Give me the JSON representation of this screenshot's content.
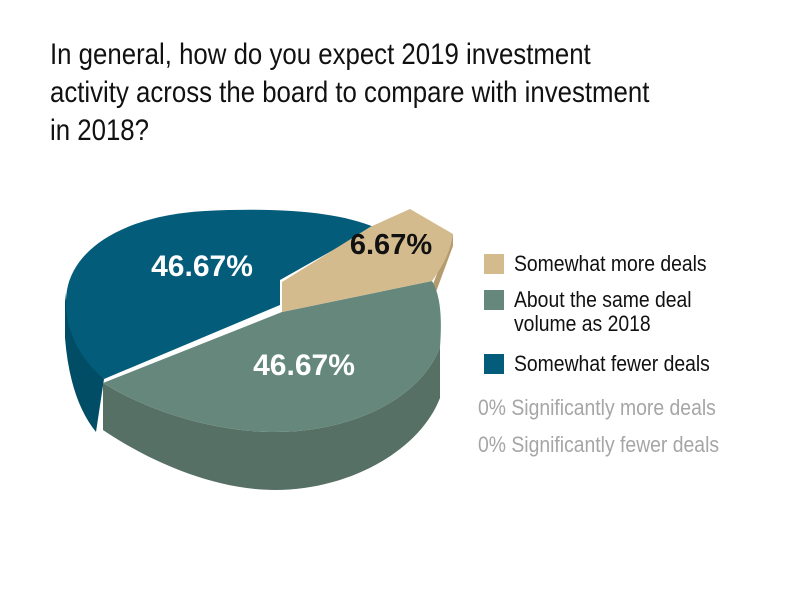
{
  "title": "In general, how do you expect 2019 investment\nactivity across the board to compare with investment\nin 2018?",
  "chart_data": {
    "type": "pie",
    "style": "3d-exploded",
    "title": "In general, how do you expect 2019 investment activity across the board to compare with investment in 2018?",
    "slices": [
      {
        "label": "Somewhat more deals",
        "value": 6.67,
        "display": "6.67%",
        "color": "#d3bb8e",
        "side_color": "#b49c6f",
        "label_color": "#111111"
      },
      {
        "label": "About the same deal volume as 2018",
        "value": 46.67,
        "display": "46.67%",
        "color": "#66887c",
        "side_color": "#577065",
        "label_color": "#ffffff"
      },
      {
        "label": "Somewhat fewer deals",
        "value": 46.67,
        "display": "46.67%",
        "color": "#035c7a",
        "side_color": "#024d66",
        "label_color": "#ffffff"
      }
    ],
    "legend": {
      "position": "right",
      "items": [
        {
          "label": "Somewhat more deals",
          "color": "#d3bb8e"
        },
        {
          "label": "About the same deal\nvolume as 2018",
          "color": "#66887c"
        },
        {
          "label": "Somewhat fewer deals",
          "color": "#035c7a"
        }
      ]
    },
    "zero_value_notes": [
      "0% Significantly more deals",
      "0% Significantly fewer deals"
    ]
  }
}
